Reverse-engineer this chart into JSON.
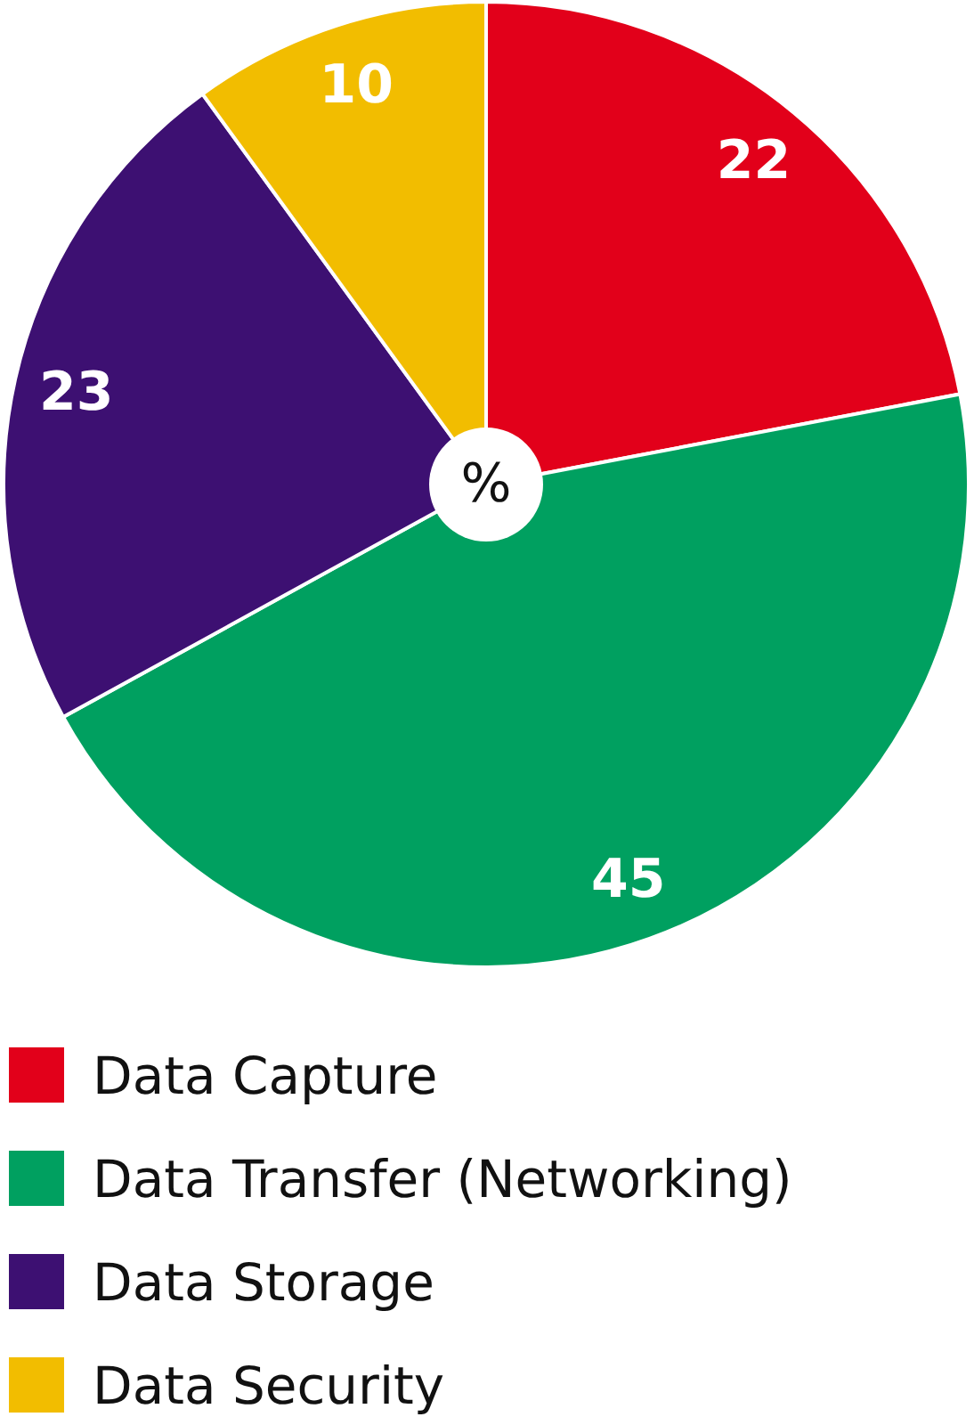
{
  "chart_data": {
    "type": "pie",
    "categories": [
      "Data Capture",
      "Data Transfer (Networking)",
      "Data Storage",
      "Data Security"
    ],
    "values": [
      22,
      45,
      23,
      10
    ],
    "colors": [
      "#e2001a",
      "#00a060",
      "#3d1072",
      "#f2bd00"
    ],
    "data_labels": true,
    "legend": "bottom",
    "annotations": [
      "%"
    ]
  }
}
